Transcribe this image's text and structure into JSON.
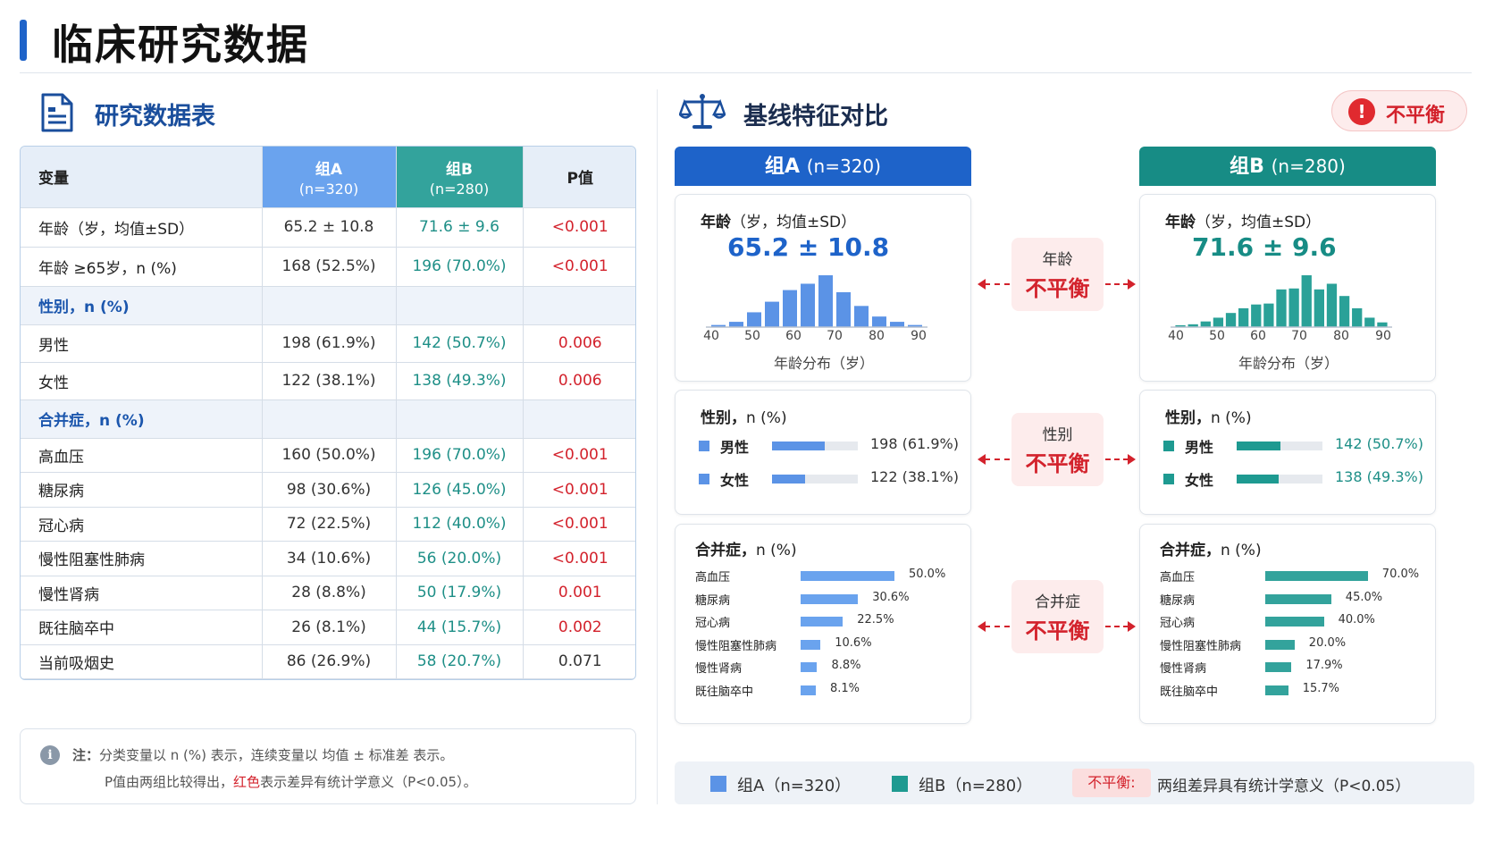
{
  "main_title": "临床研究数据",
  "table_section": {
    "title": "研究数据表",
    "icon": "document-icon"
  },
  "table": {
    "headers": {
      "variable": "变量",
      "group_a": "组A",
      "group_a_n": "(n=320)",
      "group_b": "组B",
      "group_b_n": "(n=280)",
      "p": "P值"
    },
    "rows": [
      {
        "type": "data",
        "label": "年龄（岁，均值±SD）",
        "a": "65.2 ± 10.8",
        "b": "71.6 ± 9.6",
        "p": "<0.001",
        "sig": true
      },
      {
        "type": "data",
        "label": "年龄 ≥65岁，n (%)",
        "a": "168 (52.5%)",
        "b": "196 (70.0%)",
        "p": "<0.001",
        "sig": true
      },
      {
        "type": "group",
        "label": "性别，n (%)"
      },
      {
        "type": "data",
        "label": "男性",
        "a": "198 (61.9%)",
        "b": "142 (50.7%)",
        "p": "0.006",
        "sig": true
      },
      {
        "type": "data",
        "label": "女性",
        "a": "122 (38.1%)",
        "b": "138 (49.3%)",
        "p": "0.006",
        "sig": true
      },
      {
        "type": "group",
        "label": "合并症，n (%)"
      },
      {
        "type": "data",
        "label": "高血压",
        "a": "160 (50.0%)",
        "b": "196 (70.0%)",
        "p": "<0.001",
        "sig": true
      },
      {
        "type": "data",
        "label": "糖尿病",
        "a": "98 (30.6%)",
        "b": "126 (45.0%)",
        "p": "<0.001",
        "sig": true
      },
      {
        "type": "data",
        "label": "冠心病",
        "a": "72 (22.5%)",
        "b": "112 (40.0%)",
        "p": "<0.001",
        "sig": true
      },
      {
        "type": "data",
        "label": "慢性阻塞性肺病",
        "a": "34 (10.6%)",
        "b": "56 (20.0%)",
        "p": "<0.001",
        "sig": true
      },
      {
        "type": "data",
        "label": "慢性肾病",
        "a": "28 (8.8%)",
        "b": "50 (17.9%)",
        "p": "0.001",
        "sig": true
      },
      {
        "type": "data",
        "label": "既往脑卒中",
        "a": "26 (8.1%)",
        "b": "44 (15.7%)",
        "p": "0.002",
        "sig": true
      },
      {
        "type": "data",
        "label": "当前吸烟史",
        "a": "86 (26.9%)",
        "b": "58 (20.7%)",
        "p": "0.071",
        "sig": false
      }
    ]
  },
  "note": {
    "prefix": "注：",
    "line1": "分类变量以 n (%) 表示，连续变量以 均值 ± 标准差 表示。",
    "line2_a": "P值由两组比较得出，",
    "line2_red": "红色",
    "line2_b": "表示差异有统计学意义（P<0.05）。"
  },
  "compare_section": {
    "title": "基线特征对比",
    "icon": "balance-scale-icon",
    "badge": "不平衡"
  },
  "group_a": {
    "head": "组A",
    "head_n": "(n=320)",
    "age_title": "年龄",
    "age_title_sub": "（岁，均值±SD）",
    "age_value": "65.2 ± 10.8",
    "hist": [
      2,
      5,
      14,
      24,
      35,
      41,
      49,
      33,
      20,
      10,
      5,
      2
    ],
    "ticks": [
      "40",
      "50",
      "60",
      "70",
      "80",
      "90"
    ],
    "hist_caption": "年龄分布（岁）",
    "sex_title": "性别，",
    "sex_title_sub": "n (%)",
    "sex": [
      {
        "label": "男性",
        "pct": 61.9,
        "value": "198 (61.9%)"
      },
      {
        "label": "女性",
        "pct": 38.1,
        "value": "122 (38.1%)"
      }
    ],
    "com_title": "合并症，",
    "com_title_sub": "n (%)",
    "com": [
      {
        "label": "高血压",
        "pct": 50.0,
        "value": "50.0%"
      },
      {
        "label": "糖尿病",
        "pct": 30.6,
        "value": "30.6%"
      },
      {
        "label": "冠心病",
        "pct": 22.5,
        "value": "22.5%"
      },
      {
        "label": "慢性阻塞性肺病",
        "pct": 10.6,
        "value": "10.6%"
      },
      {
        "label": "慢性肾病",
        "pct": 8.8,
        "value": "8.8%"
      },
      {
        "label": "既往脑卒中",
        "pct": 8.1,
        "value": "8.1%"
      }
    ]
  },
  "group_b": {
    "head": "组B",
    "head_n": "(n=280)",
    "age_title": "年龄",
    "age_title_sub": "（岁，均值±SD）",
    "age_value": "71.6 ± 9.6",
    "hist": [
      2,
      3,
      6,
      10,
      15,
      20,
      24,
      25,
      40,
      41,
      55,
      40,
      46,
      33,
      20,
      10,
      5
    ],
    "ticks": [
      "40",
      "50",
      "60",
      "70",
      "80",
      "90"
    ],
    "hist_caption": "年龄分布（岁）",
    "sex_title": "性别，",
    "sex_title_sub": "n (%)",
    "sex": [
      {
        "label": "男性",
        "pct": 50.7,
        "value": "142 (50.7%)"
      },
      {
        "label": "女性",
        "pct": 49.3,
        "value": "138 (49.3%)"
      }
    ],
    "com_title": "合并症，",
    "com_title_sub": "n (%)",
    "com": [
      {
        "label": "高血压",
        "pct": 70.0,
        "value": "70.0%"
      },
      {
        "label": "糖尿病",
        "pct": 45.0,
        "value": "45.0%"
      },
      {
        "label": "冠心病",
        "pct": 40.0,
        "value": "40.0%"
      },
      {
        "label": "慢性阻塞性肺病",
        "pct": 20.0,
        "value": "20.0%"
      },
      {
        "label": "慢性肾病",
        "pct": 17.9,
        "value": "17.9%"
      },
      {
        "label": "既往脑卒中",
        "pct": 15.7,
        "value": "15.7%"
      }
    ]
  },
  "imbalance_badges": [
    {
      "label": "年龄",
      "status": "不平衡"
    },
    {
      "label": "性别",
      "status": "不平衡"
    },
    {
      "label": "合并症",
      "status": "不平衡"
    }
  ],
  "legend": {
    "a": "组A（n=320）",
    "b": "组B（n=280）",
    "imb_label": "不平衡:",
    "imb_desc": "两组差异具有统计学意义（P<0.05）"
  },
  "colors": {
    "accent_blue": "#1e63c9",
    "group_a_light": "#6aa3ee",
    "group_b_teal": "#178c85",
    "significant_red": "#d3222c"
  }
}
